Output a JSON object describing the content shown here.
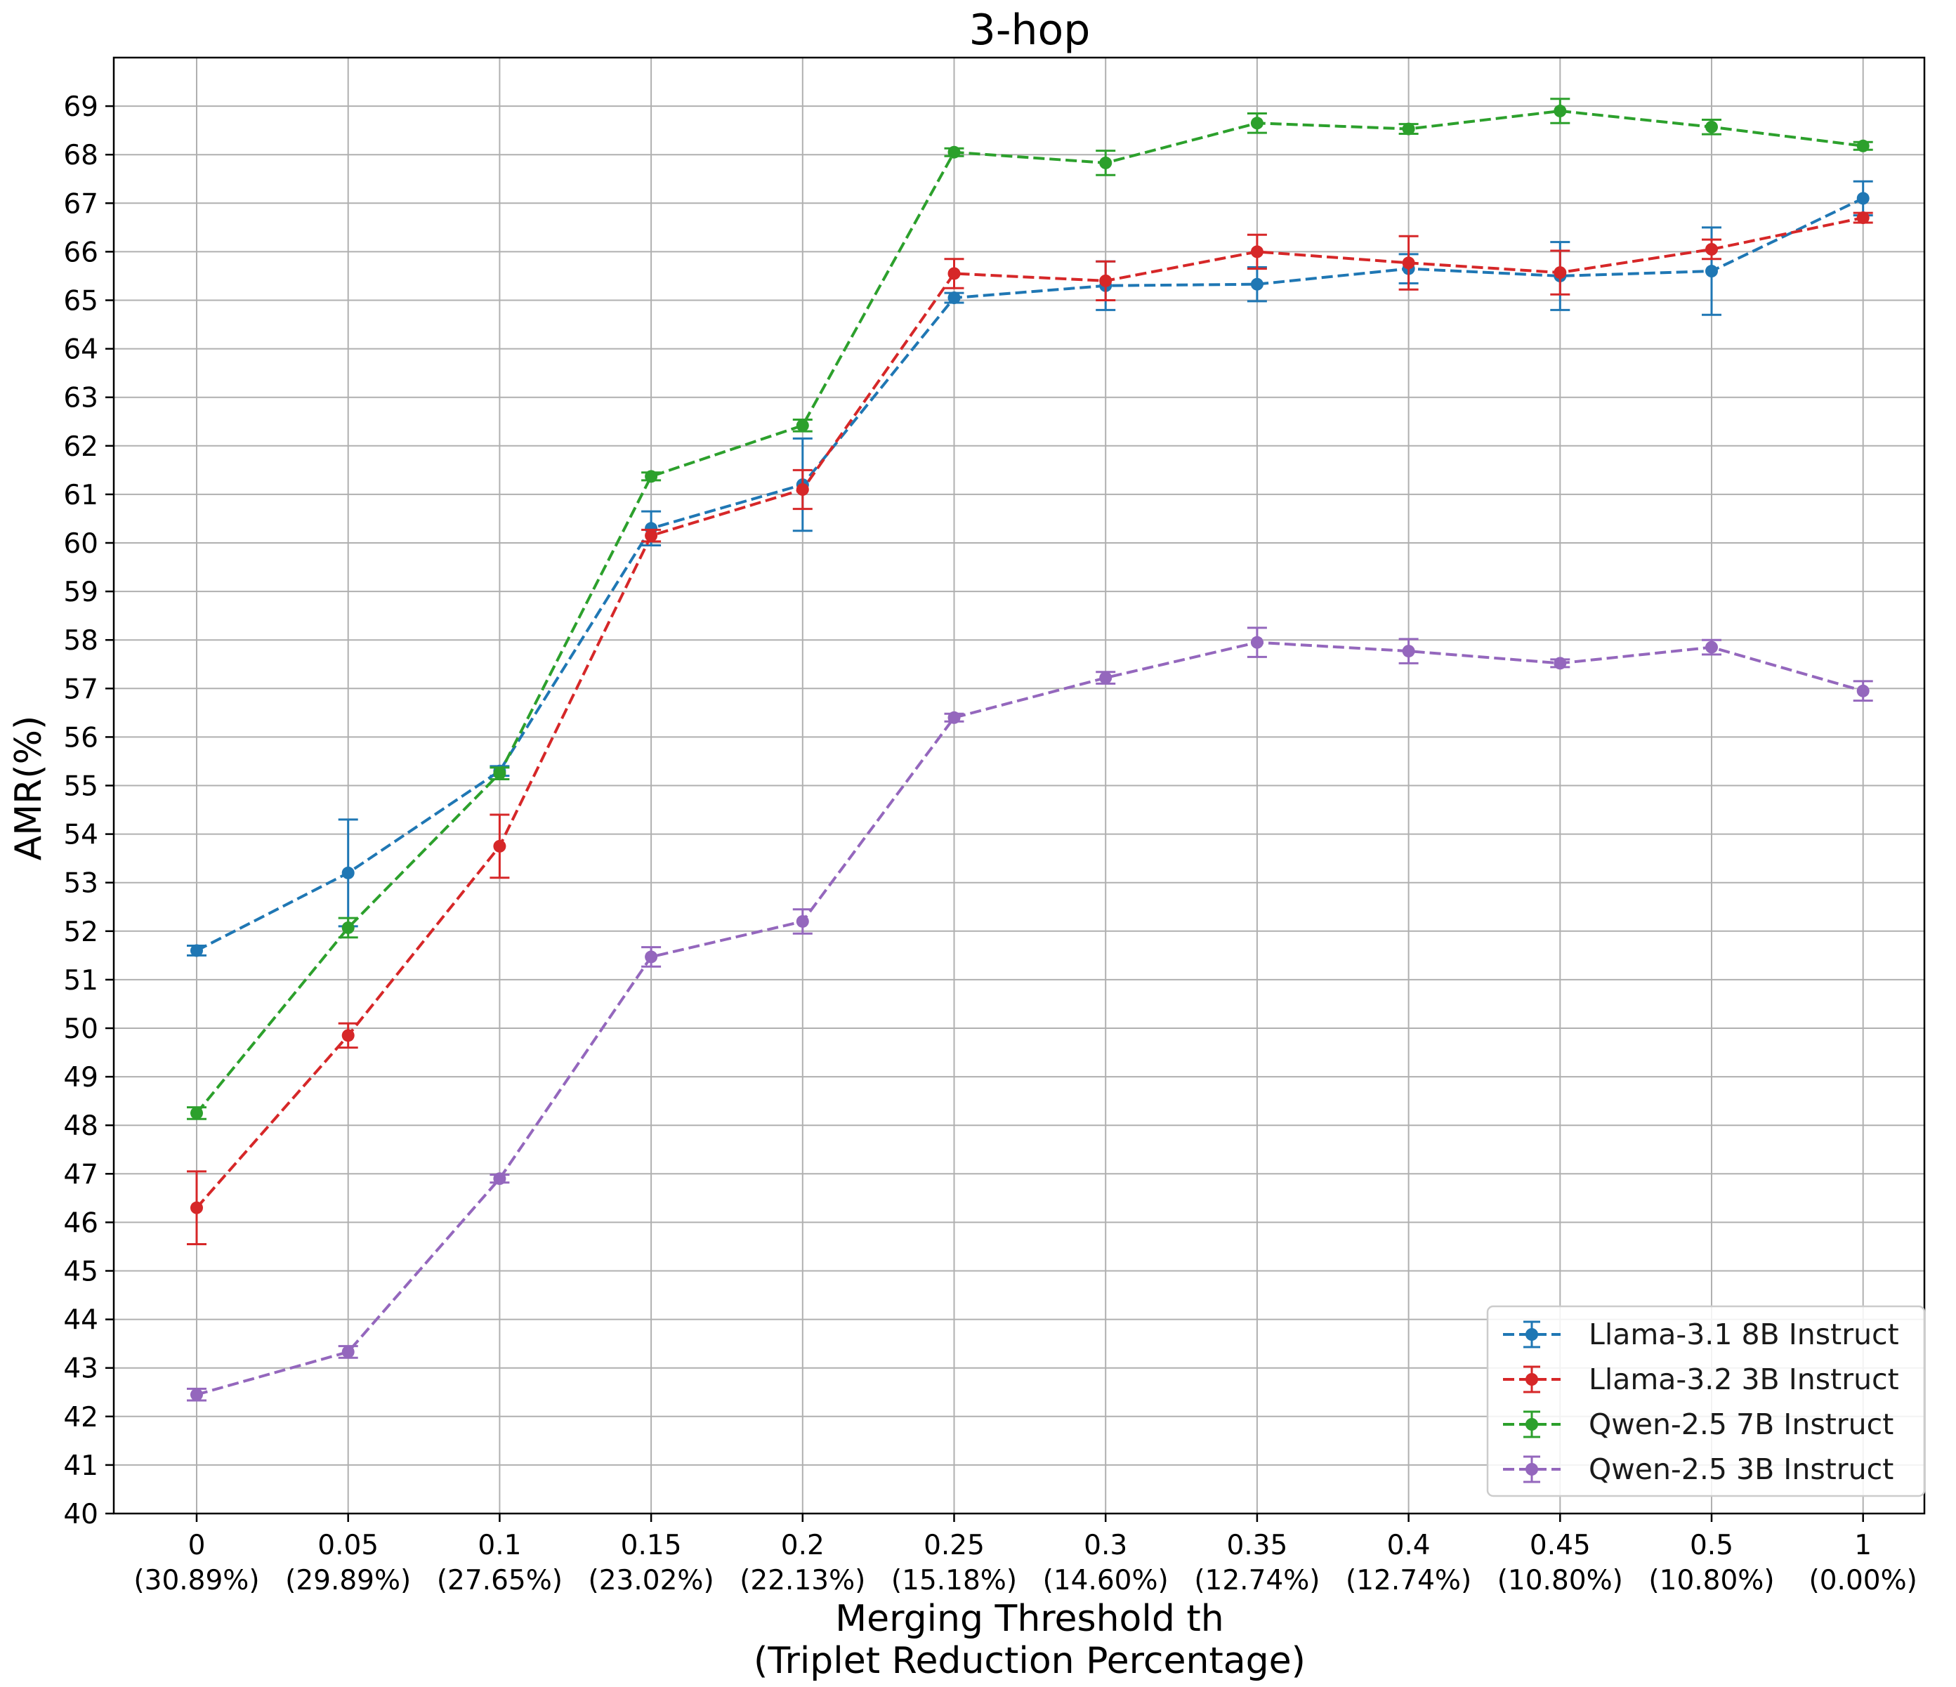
{
  "chart_data": {
    "type": "line",
    "title": "3-hop",
    "xlabel": "Merging Threshold th",
    "xlabel_sub": "(Triplet Reduction Percentage)",
    "ylabel": "AMR(%)",
    "categories": [
      "0",
      "0.05",
      "0.1",
      "0.15",
      "0.2",
      "0.25",
      "0.3",
      "0.35",
      "0.4",
      "0.45",
      "0.5",
      "1"
    ],
    "category_sublabels": [
      "(30.89%)",
      "(29.89%)",
      "(27.65%)",
      "(23.02%)",
      "(22.13%)",
      "(15.18%)",
      "(14.60%)",
      "(12.74%)",
      "(12.74%)",
      "(10.80%)",
      "(10.80%)",
      "(0.00%)"
    ],
    "ylim": [
      40,
      70
    ],
    "yticks": [
      40,
      41,
      42,
      43,
      44,
      45,
      46,
      47,
      48,
      49,
      50,
      51,
      52,
      53,
      54,
      55,
      56,
      57,
      58,
      59,
      60,
      61,
      62,
      63,
      64,
      65,
      66,
      67,
      68,
      69
    ],
    "grid": true,
    "legend_position": "bottom-right",
    "series": [
      {
        "name": "Llama-3.1 8B Instruct",
        "color": "#1f77b4",
        "values": [
          51.6,
          53.2,
          55.3,
          60.3,
          61.2,
          65.05,
          65.3,
          65.33,
          65.65,
          65.5,
          65.6,
          67.1
        ],
        "errors": [
          0.1,
          1.1,
          0.1,
          0.35,
          0.95,
          0.1,
          0.5,
          0.35,
          0.3,
          0.7,
          0.9,
          0.35
        ]
      },
      {
        "name": "Llama-3.2 3B Instruct",
        "color": "#d62728",
        "values": [
          46.3,
          49.85,
          53.75,
          60.15,
          61.1,
          65.55,
          65.4,
          66.0,
          65.77,
          65.57,
          66.05,
          66.7
        ],
        "errors": [
          0.75,
          0.25,
          0.65,
          0.12,
          0.4,
          0.3,
          0.4,
          0.35,
          0.55,
          0.45,
          0.2,
          0.1
        ]
      },
      {
        "name": "Qwen-2.5 7B Instruct",
        "color": "#2ca02c",
        "values": [
          48.25,
          52.07,
          55.25,
          61.37,
          62.42,
          68.05,
          67.83,
          68.65,
          68.53,
          68.9,
          68.57,
          68.18
        ],
        "errors": [
          0.12,
          0.2,
          0.12,
          0.08,
          0.12,
          0.08,
          0.25,
          0.2,
          0.1,
          0.25,
          0.15,
          0.08
        ]
      },
      {
        "name": "Qwen-2.5 3B Instruct",
        "color": "#9467bd",
        "values": [
          42.45,
          43.33,
          46.9,
          51.47,
          52.2,
          56.4,
          57.22,
          57.95,
          57.77,
          57.52,
          57.85,
          56.95
        ],
        "errors": [
          0.12,
          0.12,
          0.08,
          0.2,
          0.25,
          0.08,
          0.12,
          0.3,
          0.25,
          0.08,
          0.15,
          0.2
        ]
      }
    ]
  }
}
